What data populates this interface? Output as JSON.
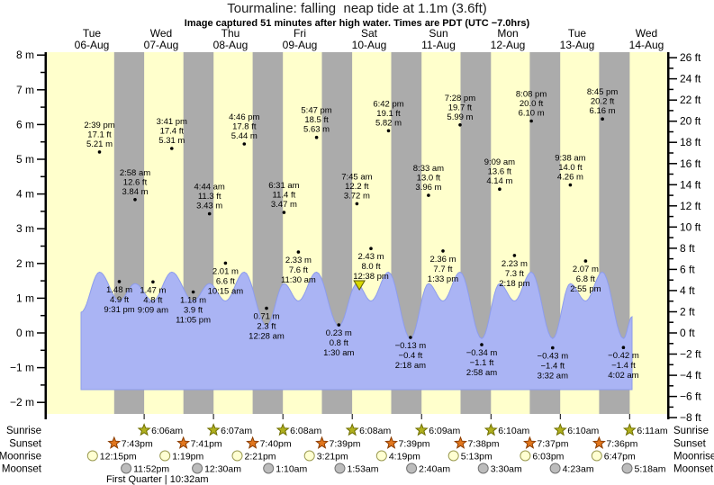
{
  "chart_data": {
    "type": "area",
    "title": "Tourmaline: falling  neap tide at 1.1m (3.6ft)",
    "subtitle": "Image captured 51 minutes after high water. Times are PDT (UTC −7.0hrs)",
    "days": [
      {
        "name": "Tue",
        "date": "06-Aug"
      },
      {
        "name": "Wed",
        "date": "07-Aug"
      },
      {
        "name": "Thu",
        "date": "08-Aug"
      },
      {
        "name": "Fri",
        "date": "09-Aug"
      },
      {
        "name": "Sat",
        "date": "10-Aug"
      },
      {
        "name": "Sun",
        "date": "11-Aug"
      },
      {
        "name": "Mon",
        "date": "12-Aug"
      },
      {
        "name": "Tue",
        "date": "13-Aug"
      },
      {
        "name": "Wed",
        "date": "14-Aug"
      }
    ],
    "left_axis": {
      "unit": "m",
      "min": -2,
      "max": 8,
      "major_step": 1,
      "minor_step": 0.5
    },
    "right_axis": {
      "unit": "ft",
      "min": -8,
      "max": 26,
      "major_step": 2,
      "minor_step": 1
    },
    "tides": [
      {
        "day": 0,
        "time": "2:39 pm",
        "m": "5.21",
        "ft": "17.1",
        "h": 5.21,
        "type": "high"
      },
      {
        "day": 0,
        "time": "9:31 pm",
        "m": "1.48",
        "ft": "4.9",
        "h": 1.48,
        "type": "low"
      },
      {
        "day": 1,
        "time": "2:58 am",
        "m": "3.84",
        "ft": "12.6",
        "h": 3.84,
        "type": "high"
      },
      {
        "day": 1,
        "time": "9:09 am",
        "m": "1.47",
        "ft": "4.8",
        "h": 1.47,
        "type": "low"
      },
      {
        "day": 1,
        "time": "3:41 pm",
        "m": "5.31",
        "ft": "17.4",
        "h": 5.31,
        "type": "high"
      },
      {
        "day": 1,
        "time": "11:05 pm",
        "m": "1.18",
        "ft": "3.9",
        "h": 1.18,
        "type": "low"
      },
      {
        "day": 2,
        "time": "4:44 am",
        "m": "3.43",
        "ft": "11.3",
        "h": 3.43,
        "type": "high"
      },
      {
        "day": 2,
        "time": "10:15 am",
        "m": "2.01",
        "ft": "6.6",
        "h": 2.01,
        "type": "low"
      },
      {
        "day": 2,
        "time": "4:46 pm",
        "m": "5.44",
        "ft": "17.8",
        "h": 5.44,
        "type": "high"
      },
      {
        "day": 3,
        "time": "12:28 am",
        "m": "0.71",
        "ft": "2.3",
        "h": 0.71,
        "type": "low"
      },
      {
        "day": 3,
        "time": "6:31 am",
        "m": "3.47",
        "ft": "11.4",
        "h": 3.47,
        "type": "high"
      },
      {
        "day": 3,
        "time": "11:30 am",
        "m": "2.33",
        "ft": "7.6",
        "h": 2.33,
        "type": "low"
      },
      {
        "day": 3,
        "time": "5:47 pm",
        "m": "5.63",
        "ft": "18.5",
        "h": 5.63,
        "type": "high"
      },
      {
        "day": 4,
        "time": "1:30 am",
        "m": "0.23",
        "ft": "0.8",
        "h": 0.23,
        "type": "low"
      },
      {
        "day": 4,
        "time": "7:45 am",
        "m": "3.72",
        "ft": "12.2",
        "h": 3.72,
        "type": "high"
      },
      {
        "day": 4,
        "time": "12:38 pm",
        "m": "2.43",
        "ft": "8.0",
        "h": 2.43,
        "type": "low"
      },
      {
        "day": 4,
        "time": "6:42 pm",
        "m": "5.82",
        "ft": "19.1",
        "h": 5.82,
        "type": "high"
      },
      {
        "day": 5,
        "time": "2:18 am",
        "m": "−0.13",
        "ft": "−0.4",
        "h": -0.13,
        "type": "low"
      },
      {
        "day": 5,
        "time": "8:33 am",
        "m": "3.96",
        "ft": "13.0",
        "h": 3.96,
        "type": "high"
      },
      {
        "day": 5,
        "time": "1:33 pm",
        "m": "2.36",
        "ft": "7.7",
        "h": 2.36,
        "type": "low"
      },
      {
        "day": 5,
        "time": "7:28 pm",
        "m": "5.99",
        "ft": "19.7",
        "h": 5.99,
        "type": "high"
      },
      {
        "day": 6,
        "time": "2:58 am",
        "m": "−0.34",
        "ft": "−1.1",
        "h": -0.34,
        "type": "low"
      },
      {
        "day": 6,
        "time": "9:09 am",
        "m": "4.14",
        "ft": "13.6",
        "h": 4.14,
        "type": "high"
      },
      {
        "day": 6,
        "time": "2:18 pm",
        "m": "2.23",
        "ft": "7.3",
        "h": 2.23,
        "type": "low"
      },
      {
        "day": 6,
        "time": "8:08 pm",
        "m": "6.10",
        "ft": "20.0",
        "h": 6.1,
        "type": "high"
      },
      {
        "day": 7,
        "time": "3:32 am",
        "m": "−0.43",
        "ft": "−1.4",
        "h": -0.43,
        "type": "low"
      },
      {
        "day": 7,
        "time": "9:38 am",
        "m": "4.26",
        "ft": "14.0",
        "h": 4.26,
        "type": "high"
      },
      {
        "day": 7,
        "time": "2:55 pm",
        "m": "2.07",
        "ft": "6.8",
        "h": 2.07,
        "type": "low"
      },
      {
        "day": 7,
        "time": "8:45 pm",
        "m": "6.16",
        "ft": "20.2",
        "h": 6.16,
        "type": "high"
      },
      {
        "day": 8,
        "time": "4:02 am",
        "m": "−0.42",
        "ft": "−1.4",
        "h": -0.42,
        "type": "low"
      }
    ],
    "current_marker": {
      "day": 4,
      "time": "8:36 am",
      "height_label": "1.1m (3.6ft)"
    },
    "almanac": {
      "rows": [
        {
          "id": "sunrise",
          "label": "Sunrise",
          "icon": "sunrise-star-icon",
          "times": [
            {
              "day": 1,
              "time": "6:06am"
            },
            {
              "day": 2,
              "time": "6:07am"
            },
            {
              "day": 3,
              "time": "6:08am"
            },
            {
              "day": 4,
              "time": "6:08am"
            },
            {
              "day": 5,
              "time": "6:09am"
            },
            {
              "day": 6,
              "time": "6:10am"
            },
            {
              "day": 7,
              "time": "6:10am"
            },
            {
              "day": 8,
              "time": "6:11am"
            }
          ]
        },
        {
          "id": "sunset",
          "label": "Sunset",
          "icon": "sunset-star-icon",
          "times": [
            {
              "day": 0,
              "time": "7:43pm"
            },
            {
              "day": 1,
              "time": "7:41pm"
            },
            {
              "day": 2,
              "time": "7:40pm"
            },
            {
              "day": 3,
              "time": "7:39pm"
            },
            {
              "day": 4,
              "time": "7:39pm"
            },
            {
              "day": 5,
              "time": "7:38pm"
            },
            {
              "day": 6,
              "time": "7:37pm"
            },
            {
              "day": 7,
              "time": "7:36pm"
            }
          ]
        },
        {
          "id": "moonrise",
          "label": "Moonrise",
          "icon": "moonrise-circle-icon",
          "times": [
            {
              "day": 0,
              "time": "12:15pm"
            },
            {
              "day": 1,
              "time": "1:19pm"
            },
            {
              "day": 2,
              "time": "2:21pm"
            },
            {
              "day": 3,
              "time": "3:21pm"
            },
            {
              "day": 4,
              "time": "4:19pm"
            },
            {
              "day": 5,
              "time": "5:13pm"
            },
            {
              "day": 6,
              "time": "6:03pm"
            },
            {
              "day": 7,
              "time": "6:47pm"
            }
          ]
        },
        {
          "id": "moonset",
          "label": "Moonset",
          "icon": "moonset-circle-icon",
          "times": [
            {
              "day": 0,
              "time": "11:52pm"
            },
            {
              "day": 2,
              "time": "12:30am"
            },
            {
              "day": 3,
              "time": "1:10am"
            },
            {
              "day": 4,
              "time": "1:53am"
            },
            {
              "day": 5,
              "time": "2:40am"
            },
            {
              "day": 6,
              "time": "3:30am"
            },
            {
              "day": 7,
              "time": "4:23am"
            },
            {
              "day": 8,
              "time": "5:18am"
            }
          ]
        }
      ],
      "moon_phase": "First Quarter | 10:32am"
    },
    "colors": {
      "day_band": "#ffffcc",
      "night_band": "#ababab",
      "tide_fill": "#aab4f4",
      "tide_edge": "#8d9cec",
      "date_label": "#ee3333",
      "sunrise_fill": "#b0b01e",
      "sunrise_stroke": "#6e6e00",
      "sunset_fill": "#e1761d",
      "sunset_stroke": "#8a3c00",
      "moonrise_fill": "#ffffd2",
      "moonrise_stroke": "#9a9a50",
      "moonset_fill": "#bcbcbc",
      "moonset_stroke": "#737373",
      "marker_fill": "#d8d800",
      "marker_stroke": "#5c5c00"
    }
  }
}
